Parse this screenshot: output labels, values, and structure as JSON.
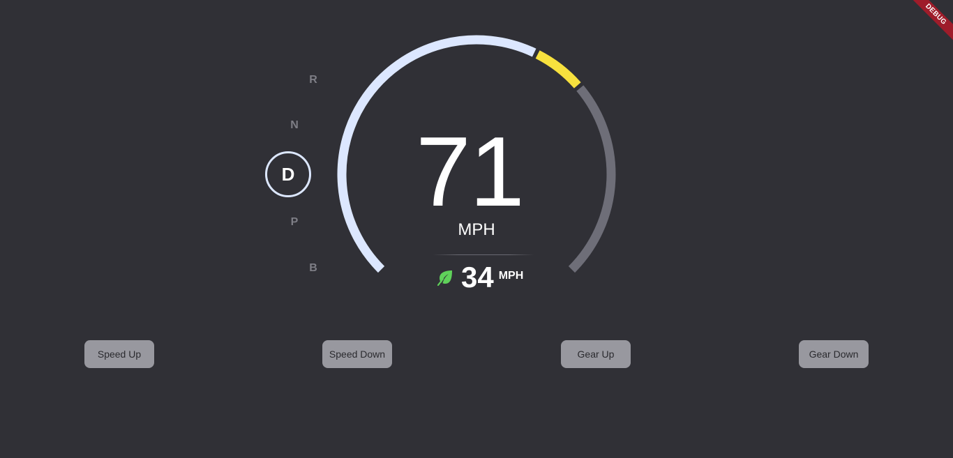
{
  "gear_selector": {
    "gears": [
      "R",
      "N",
      "D",
      "P",
      "B"
    ],
    "active": "D"
  },
  "speedometer": {
    "speed": "71",
    "unit": "MPH",
    "speed_fraction": 0.6,
    "warning_start_fraction": 0.6,
    "warning_end_fraction": 0.68,
    "colors": {
      "progress": "#dce7ff",
      "warning": "#f7e13e",
      "remaining": "#6e6e78"
    }
  },
  "eco": {
    "icon": "leaf-icon",
    "value": "34",
    "unit": "MPH",
    "color": "#5fd15a"
  },
  "controls": {
    "speed_up": "Speed Up",
    "speed_down": "Speed Down",
    "gear_up": "Gear Up",
    "gear_down": "Gear Down"
  },
  "banner": {
    "label": "DEBUG",
    "color": "#9e1c2a"
  }
}
